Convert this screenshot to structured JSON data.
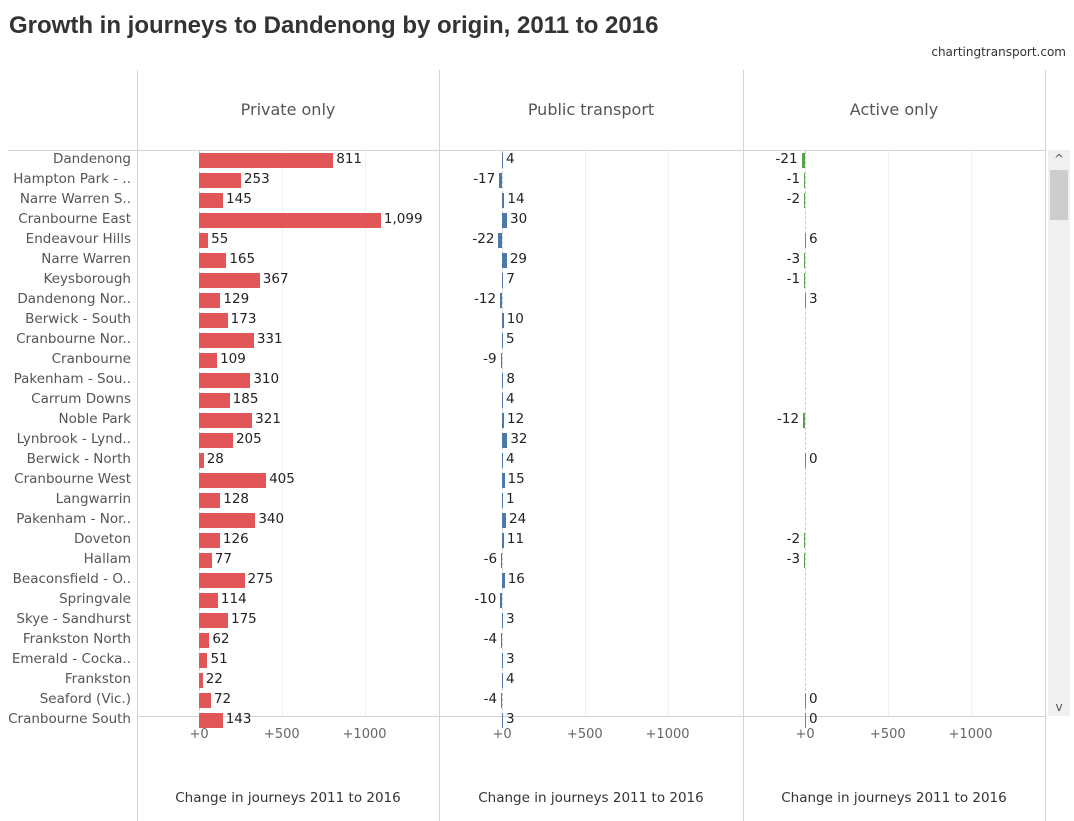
{
  "title": "Growth in journeys to Dandenong by origin, 2011 to 2016",
  "credit": "chartingtransport.com",
  "chart_data": {
    "type": "bar",
    "orientation": "horizontal",
    "title": "Growth in journeys to Dandenong by origin, 2011 to 2016",
    "categories": [
      "Dandenong",
      "Hampton Park - ..",
      "Narre Warren S..",
      "Cranbourne East",
      "Endeavour Hills",
      "Narre Warren",
      "Keysborough",
      "Dandenong Nor..",
      "Berwick - South",
      "Cranbourne Nor..",
      "Cranbourne",
      "Pakenham - Sou..",
      "Carrum Downs",
      "Noble Park",
      "Lynbrook - Lynd..",
      "Berwick - North",
      "Cranbourne West",
      "Langwarrin",
      "Pakenham - Nor..",
      "Doveton",
      "Hallam",
      "Beaconsfield - O..",
      "Springvale",
      "Skye - Sandhurst",
      "Frankston North",
      "Emerald - Cocka..",
      "Frankston",
      "Seaford (Vic.)",
      "Cranbourne South"
    ],
    "panels": [
      {
        "name": "Private only",
        "xlabel": "Change in journeys 2011 to 2016",
        "color": "#e15759",
        "values": [
          811,
          253,
          145,
          1099,
          55,
          165,
          367,
          129,
          173,
          331,
          109,
          310,
          185,
          321,
          205,
          28,
          405,
          128,
          340,
          126,
          77,
          275,
          114,
          175,
          62,
          51,
          22,
          72,
          143
        ]
      },
      {
        "name": "Public transport",
        "xlabel": "Change in journeys 2011 to 2016",
        "color": "#4e79a7",
        "values": [
          4,
          -17,
          14,
          30,
          -22,
          29,
          7,
          -12,
          10,
          5,
          -9,
          8,
          4,
          12,
          32,
          4,
          15,
          1,
          24,
          11,
          -6,
          16,
          -10,
          3,
          -4,
          3,
          4,
          -4,
          3
        ]
      },
      {
        "name": "Active only",
        "xlabel": "Change in journeys 2011 to 2016",
        "color": "#59a14f",
        "values": [
          -21,
          -1,
          -2,
          null,
          6,
          -3,
          -1,
          3,
          null,
          null,
          null,
          null,
          null,
          -12,
          null,
          0,
          null,
          null,
          null,
          -2,
          -3,
          null,
          null,
          null,
          null,
          null,
          null,
          0,
          0
        ]
      }
    ],
    "ticks": [
      "+0",
      "+500",
      "+1000"
    ],
    "tick_values": [
      0,
      500,
      1000
    ],
    "xlim": [
      -375,
      1450
    ],
    "grid": true
  },
  "scrollbar": {
    "up": "^",
    "down": "v"
  }
}
